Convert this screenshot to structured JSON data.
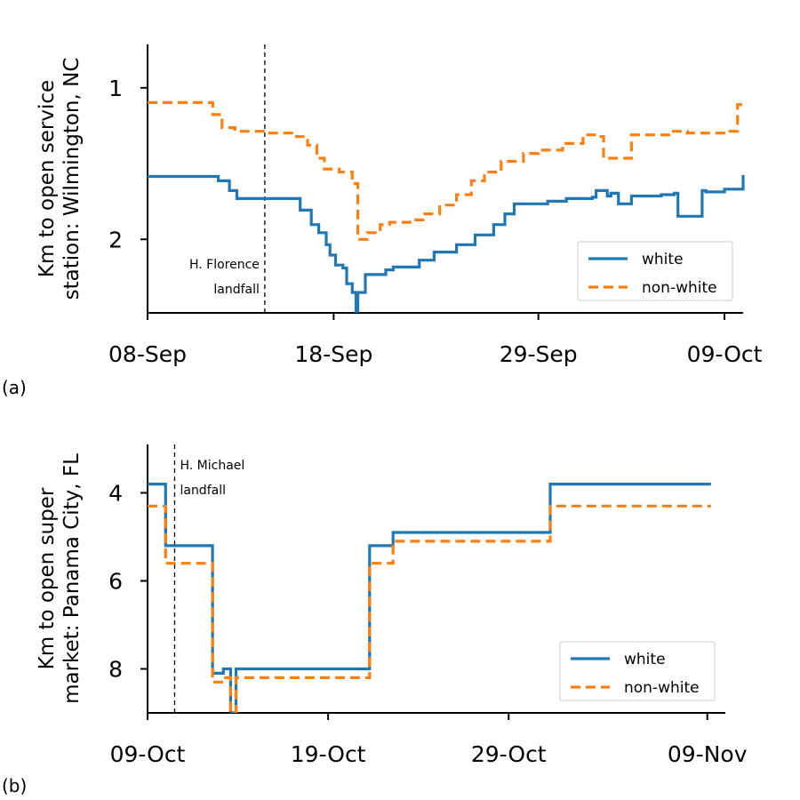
{
  "chart_data": [
    {
      "panel_label": "(a)",
      "type": "line",
      "ylabel_lines": [
        "Km to open service",
        "station: Wilmington, NC"
      ],
      "y_inverted": true,
      "y_scale": "log",
      "ylim": [
        0.82,
        2.8
      ],
      "yticks": [
        {
          "value": 1,
          "label": "1"
        },
        {
          "value": 2,
          "label": "2"
        }
      ],
      "xlim": [
        "2018-09-08",
        "2018-10-10"
      ],
      "xticks": [
        {
          "value": "2018-09-08",
          "label": "08-Sep"
        },
        {
          "value": "2018-09-18",
          "label": "18-Sep"
        },
        {
          "value": "2018-09-29",
          "label": "29-Sep"
        },
        {
          "value": "2018-10-09",
          "label": "09-Oct"
        }
      ],
      "event": {
        "date": "2018-09-14.3",
        "label_lines": [
          "H. Florence",
          "landfall"
        ]
      },
      "legend": {
        "position": "lower-right"
      },
      "series": [
        {
          "name": "white",
          "style": "solid",
          "color": "#1f77b4",
          "x": [
            "2018-09-08",
            "2018-09-11.4",
            "2018-09-11.8",
            "2018-09-12.4",
            "2018-09-12.8",
            "2018-09-14.3",
            "2018-09-16.2",
            "2018-09-16.8",
            "2018-09-17.2",
            "2018-09-17.6",
            "2018-09-17.8",
            "2018-09-18.1",
            "2018-09-18.5",
            "2018-09-18.7",
            "2018-09-19",
            "2018-09-19.2",
            "2018-09-19.3",
            "2018-09-19.5",
            "2018-09-19.7",
            "2018-09-20.4",
            "2018-09-20.8",
            "2018-09-21.2",
            "2018-09-22.6",
            "2018-09-23.4",
            "2018-09-24.6",
            "2018-09-25.6",
            "2018-09-26.6",
            "2018-09-27.2",
            "2018-09-27.7",
            "2018-09-29.5",
            "2018-09-30.5",
            "2018-10-01.9",
            "2018-10-02.1",
            "2018-10-02.7",
            "2018-10-02.9",
            "2018-10-03.3",
            "2018-10-04",
            "2018-10-05.6",
            "2018-10-06.3",
            "2018-10-06.5",
            "2018-10-07.8",
            "2018-10-08",
            "2018-10-09",
            "2018-10-09.5",
            "2018-10-10"
          ],
          "y": [
            1.5,
            1.5,
            1.53,
            1.6,
            1.66,
            1.66,
            1.75,
            1.87,
            1.94,
            2.05,
            2.15,
            2.25,
            2.28,
            2.45,
            2.55,
            2.78,
            2.55,
            2.55,
            2.35,
            2.35,
            2.3,
            2.27,
            2.2,
            2.12,
            2.05,
            1.96,
            1.87,
            1.78,
            1.7,
            1.68,
            1.66,
            1.65,
            1.6,
            1.64,
            1.62,
            1.7,
            1.64,
            1.63,
            1.62,
            1.8,
            1.6,
            1.61,
            1.59,
            1.59,
            1.49
          ]
        },
        {
          "name": "non-white",
          "style": "dashed",
          "color": "#ff7f0e",
          "x": [
            "2018-09-08",
            "2018-09-11",
            "2018-09-11.5",
            "2018-09-12",
            "2018-09-12.7",
            "2018-09-14.3",
            "2018-09-16",
            "2018-09-16.6",
            "2018-09-17.1",
            "2018-09-17.5",
            "2018-09-18.3",
            "2018-09-19",
            "2018-09-19.3",
            "2018-09-19.8",
            "2018-09-20.5",
            "2018-09-21",
            "2018-09-22.1",
            "2018-09-22.8",
            "2018-09-23.7",
            "2018-09-24.6",
            "2018-09-25.4",
            "2018-09-26.1",
            "2018-09-27",
            "2018-09-28.2",
            "2018-09-29",
            "2018-09-30.3",
            "2018-10-01.4",
            "2018-10-02.1",
            "2018-10-02.5",
            "2018-10-04",
            "2018-10-06",
            "2018-10-07",
            "2018-10-08.6",
            "2018-10-09.3",
            "2018-10-09.7",
            "2018-10-10"
          ],
          "y": [
            1.07,
            1.07,
            1.13,
            1.2,
            1.22,
            1.23,
            1.25,
            1.3,
            1.38,
            1.45,
            1.47,
            1.55,
            2.0,
            1.94,
            1.87,
            1.85,
            1.83,
            1.78,
            1.71,
            1.63,
            1.53,
            1.47,
            1.4,
            1.35,
            1.33,
            1.29,
            1.24,
            1.25,
            1.38,
            1.24,
            1.22,
            1.23,
            1.23,
            1.22,
            1.08,
            1.07
          ]
        }
      ]
    },
    {
      "panel_label": "(b)",
      "type": "line",
      "ylabel_lines": [
        "Km to open super",
        "market: Panama City, FL"
      ],
      "y_inverted": true,
      "y_scale": "linear",
      "ylim": [
        2.9,
        9.0
      ],
      "yticks": [
        {
          "value": 4,
          "label": "4"
        },
        {
          "value": 6,
          "label": "6"
        },
        {
          "value": 8,
          "label": "8"
        }
      ],
      "xlim": [
        "2018-10-09",
        "2018-11-10"
      ],
      "xticks": [
        {
          "value": "2018-10-09",
          "label": "09-Oct"
        },
        {
          "value": "2018-10-19",
          "label": "19-Oct"
        },
        {
          "value": "2018-10-29",
          "label": "29-Oct"
        },
        {
          "value": "2018-11-09",
          "label": "09-Nov"
        }
      ],
      "event": {
        "date": "2018-10-10.5",
        "label_lines": [
          "H. Michael",
          "landfall"
        ]
      },
      "legend": {
        "position": "lower-right"
      },
      "series": [
        {
          "name": "white",
          "style": "solid",
          "color": "#1f77b4",
          "x": [
            "2018-10-09",
            "2018-10-10",
            "2018-10-11",
            "2018-10-12.6",
            "2018-10-13.2",
            "2018-10-13.6",
            "2018-10-13.9",
            "2018-10-14.2",
            "2018-10-21.3",
            "2018-10-22.6",
            "2018-10-31.3",
            "2018-11-09.2"
          ],
          "y": [
            3.8,
            5.2,
            5.2,
            8.1,
            8.0,
            9.0,
            8.0,
            8.0,
            5.2,
            4.9,
            3.8,
            3.8
          ]
        },
        {
          "name": "non-white",
          "style": "dashed",
          "color": "#ff7f0e",
          "x": [
            "2018-10-09",
            "2018-10-10",
            "2018-10-11",
            "2018-10-12.6",
            "2018-10-13.2",
            "2018-10-13.6",
            "2018-10-13.9",
            "2018-10-14.2",
            "2018-10-21.3",
            "2018-10-22.6",
            "2018-10-31.3",
            "2018-11-09.2"
          ],
          "y": [
            4.3,
            5.6,
            5.6,
            8.3,
            8.2,
            9.0,
            8.2,
            8.2,
            5.6,
            5.1,
            4.3,
            4.3
          ]
        }
      ]
    }
  ]
}
